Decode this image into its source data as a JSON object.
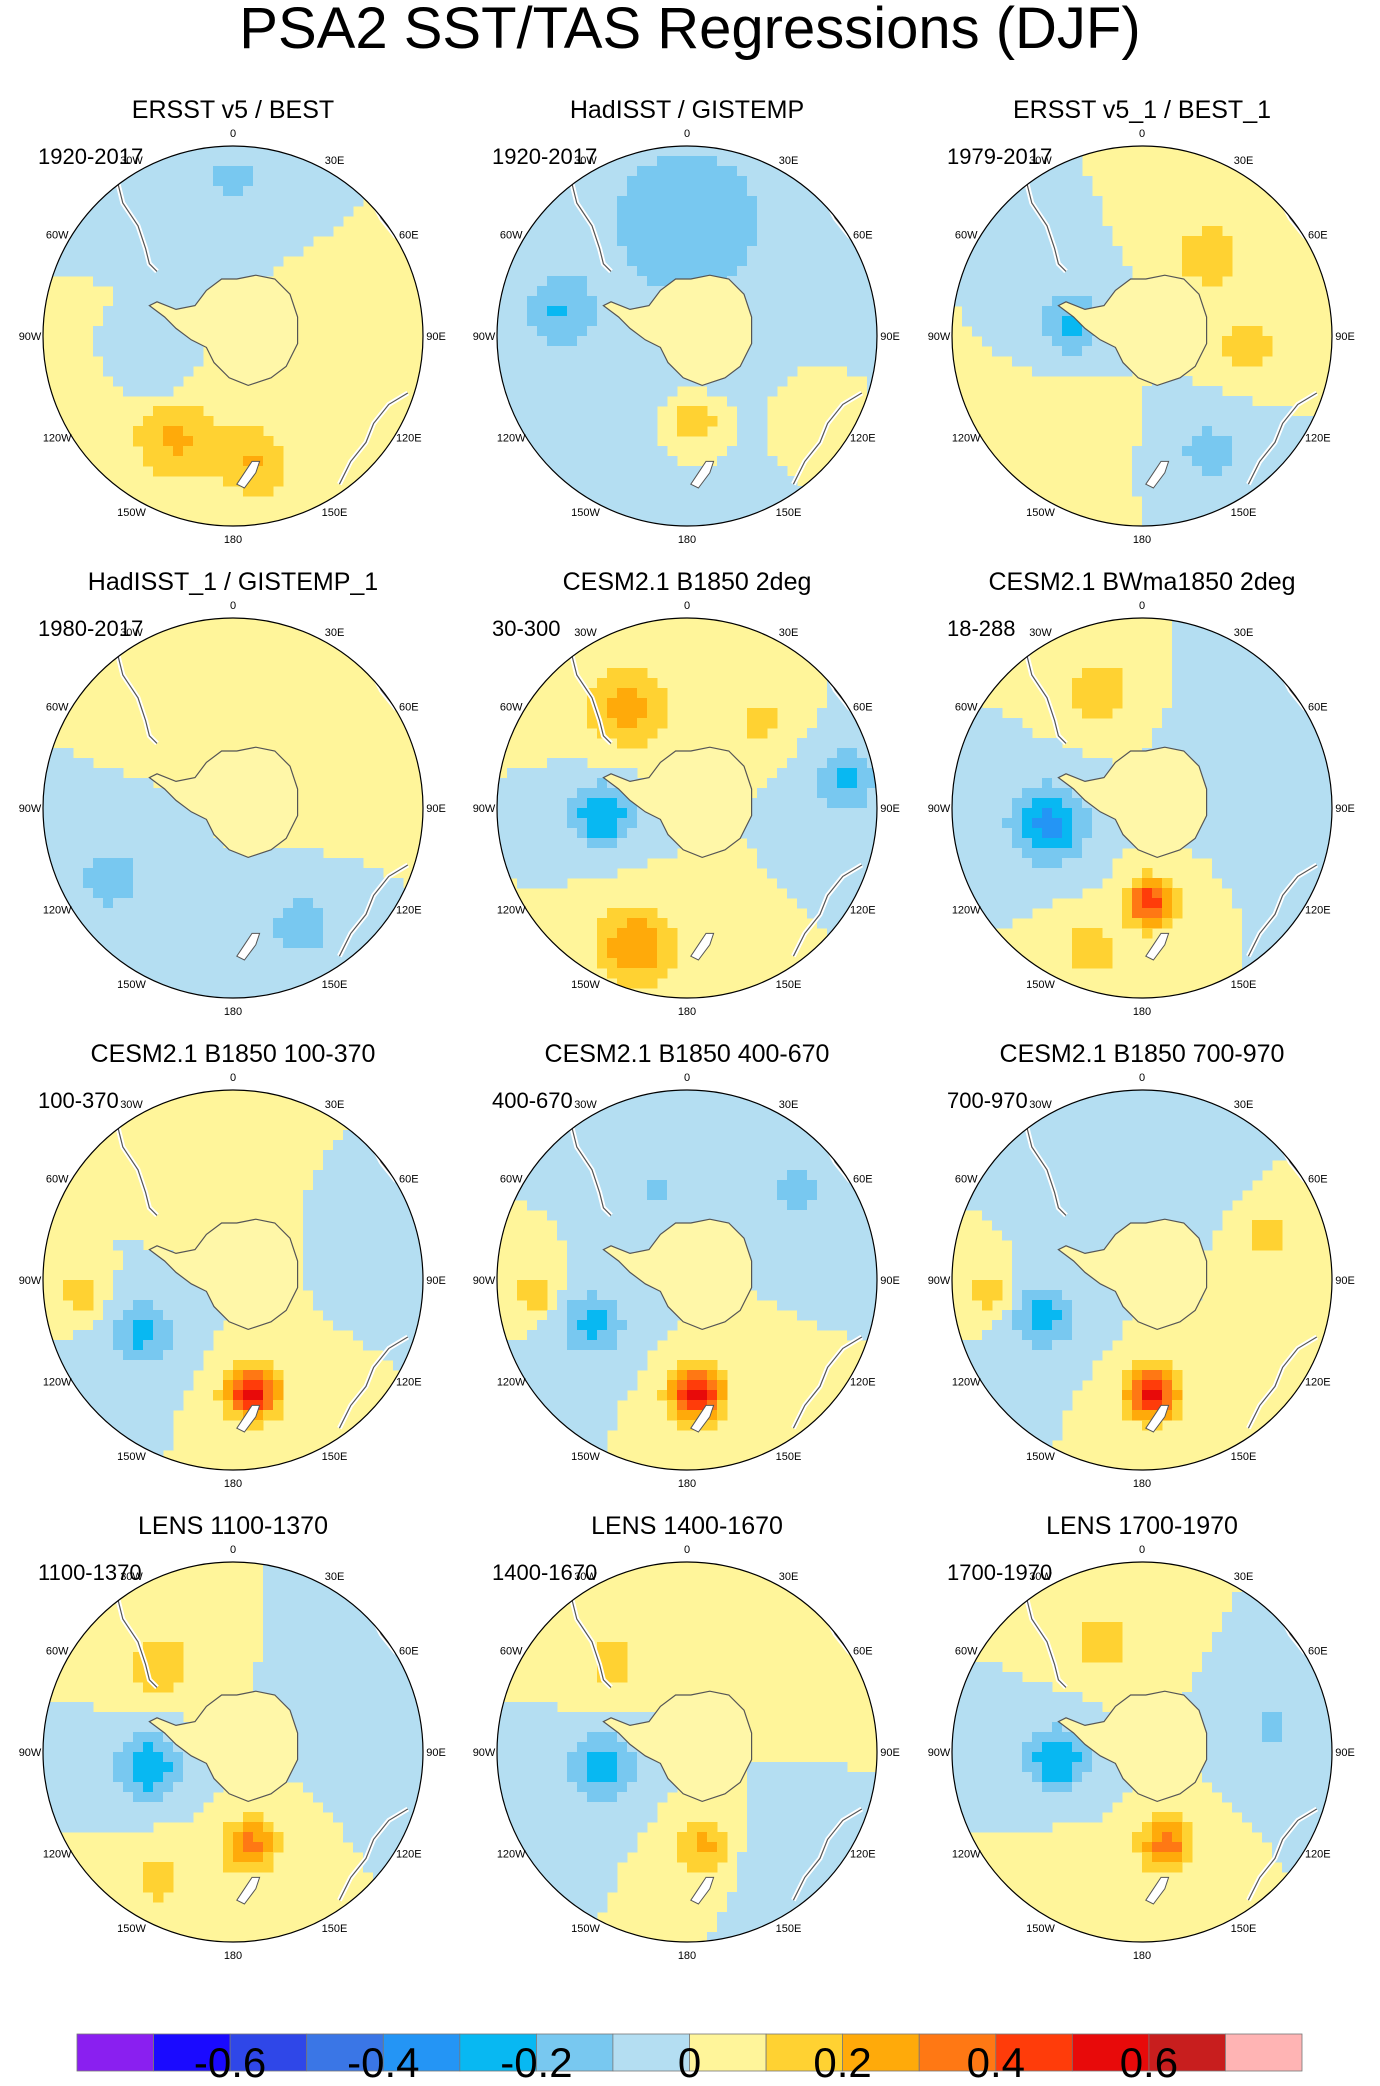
{
  "figure": {
    "title": "PSA2 SST/TAS Regressions (DJF)",
    "longitude_labels": [
      "0",
      "30E",
      "60E",
      "90E",
      "120E",
      "150E",
      "180",
      "150W",
      "120W",
      "90W",
      "60W",
      "30W"
    ]
  },
  "panels": [
    {
      "title": "ERSST v5 / BEST",
      "years": "1920-2017",
      "blobs": [
        {
          "lon": -150,
          "r": 0.62,
          "v": 0.22,
          "s": 0.16
        },
        {
          "lon": 170,
          "r": 0.68,
          "v": 0.2,
          "s": 0.14
        },
        {
          "lon": -120,
          "r": 0.45,
          "v": -0.1,
          "s": 0.1
        },
        {
          "lon": 0,
          "r": 0.82,
          "v": -0.12,
          "s": 0.16
        },
        {
          "lon": 100,
          "r": 0.6,
          "v": 0.05,
          "s": 0.2
        }
      ]
    },
    {
      "title": "HadISST / GISTEMP",
      "years": "1920-2017",
      "blobs": [
        {
          "lon": 0,
          "r": 0.6,
          "v": -0.12,
          "s": 0.6
        },
        {
          "lon": 175,
          "r": 0.45,
          "v": 0.2,
          "s": 0.1
        },
        {
          "lon": -80,
          "r": 0.7,
          "v": -0.16,
          "s": 0.12
        },
        {
          "lon": 120,
          "r": 0.75,
          "v": 0.06,
          "s": 0.18
        }
      ]
    },
    {
      "title": "ERSST v5_1 / BEST_1",
      "years": "1979-2017",
      "blobs": [
        {
          "lon": -80,
          "r": 0.38,
          "v": -0.22,
          "s": 0.12
        },
        {
          "lon": 40,
          "r": 0.55,
          "v": 0.2,
          "s": 0.12
        },
        {
          "lon": 95,
          "r": 0.55,
          "v": 0.16,
          "s": 0.12
        },
        {
          "lon": -140,
          "r": 0.7,
          "v": 0.06,
          "s": 0.18
        },
        {
          "lon": 150,
          "r": 0.7,
          "v": -0.14,
          "s": 0.14
        }
      ]
    },
    {
      "title": "HadISST_1 / GISTEMP_1",
      "years": "1980-2017",
      "blobs": [
        {
          "lon": -120,
          "r": 0.75,
          "v": -0.14,
          "s": 0.16
        },
        {
          "lon": 150,
          "r": 0.72,
          "v": -0.16,
          "s": 0.14
        },
        {
          "lon": -30,
          "r": 0.7,
          "v": 0.1,
          "s": 0.14
        },
        {
          "lon": 60,
          "r": 0.55,
          "v": 0.06,
          "s": 0.2
        }
      ]
    },
    {
      "title": "CESM2.1 B1850 2deg",
      "years": "30-300",
      "blobs": [
        {
          "lon": -30,
          "r": 0.62,
          "v": 0.24,
          "s": 0.16
        },
        {
          "lon": -95,
          "r": 0.45,
          "v": -0.3,
          "s": 0.12
        },
        {
          "lon": -160,
          "r": 0.78,
          "v": 0.3,
          "s": 0.15
        },
        {
          "lon": 80,
          "r": 0.85,
          "v": -0.22,
          "s": 0.12
        },
        {
          "lon": 40,
          "r": 0.6,
          "v": 0.14,
          "s": 0.1
        }
      ]
    },
    {
      "title": "CESM2.1 BWma1850 2deg",
      "years": "18-288",
      "blobs": [
        {
          "lon": -100,
          "r": 0.5,
          "v": -0.34,
          "s": 0.14
        },
        {
          "lon": 175,
          "r": 0.5,
          "v": 0.48,
          "s": 0.09
        },
        {
          "lon": -20,
          "r": 0.65,
          "v": 0.2,
          "s": 0.12
        },
        {
          "lon": -160,
          "r": 0.8,
          "v": 0.16,
          "s": 0.12
        },
        {
          "lon": 60,
          "r": 0.65,
          "v": -0.08,
          "s": 0.18
        }
      ]
    },
    {
      "title": "CESM2.1 B1850 100-370",
      "years": "100-370",
      "blobs": [
        {
          "lon": 170,
          "r": 0.6,
          "v": 0.55,
          "s": 0.1
        },
        {
          "lon": -120,
          "r": 0.55,
          "v": -0.24,
          "s": 0.12
        },
        {
          "lon": -95,
          "r": 0.8,
          "v": 0.18,
          "s": 0.08
        },
        {
          "lon": 60,
          "r": 0.78,
          "v": -0.1,
          "s": 0.12
        },
        {
          "lon": 0,
          "r": 0.7,
          "v": 0.06,
          "s": 0.2
        }
      ]
    },
    {
      "title": "CESM2.1 B1850 400-670",
      "years": "400-670",
      "blobs": [
        {
          "lon": 175,
          "r": 0.6,
          "v": 0.55,
          "s": 0.1
        },
        {
          "lon": -115,
          "r": 0.55,
          "v": -0.24,
          "s": 0.12
        },
        {
          "lon": -95,
          "r": 0.8,
          "v": 0.18,
          "s": 0.08
        },
        {
          "lon": 50,
          "r": 0.75,
          "v": -0.16,
          "s": 0.1
        },
        {
          "lon": -20,
          "r": 0.5,
          "v": -0.12,
          "s": 0.1
        }
      ]
    },
    {
      "title": "CESM2.1 B1850 700-970",
      "years": "700-970",
      "blobs": [
        {
          "lon": 175,
          "r": 0.6,
          "v": 0.52,
          "s": 0.1
        },
        {
          "lon": -110,
          "r": 0.55,
          "v": -0.24,
          "s": 0.12
        },
        {
          "lon": -95,
          "r": 0.8,
          "v": 0.18,
          "s": 0.08
        },
        {
          "lon": 70,
          "r": 0.7,
          "v": 0.14,
          "s": 0.1
        },
        {
          "lon": 20,
          "r": 0.6,
          "v": -0.08,
          "s": 0.14
        }
      ]
    },
    {
      "title": "LENS 1100-1370",
      "years": "1100-1370",
      "blobs": [
        {
          "lon": -100,
          "r": 0.45,
          "v": -0.3,
          "s": 0.12
        },
        {
          "lon": 170,
          "r": 0.5,
          "v": 0.36,
          "s": 0.1
        },
        {
          "lon": -40,
          "r": 0.6,
          "v": 0.2,
          "s": 0.12
        },
        {
          "lon": -150,
          "r": 0.78,
          "v": 0.14,
          "s": 0.12
        },
        {
          "lon": 70,
          "r": 0.7,
          "v": -0.1,
          "s": 0.14
        }
      ]
    },
    {
      "title": "LENS 1400-1670",
      "years": "1400-1670",
      "blobs": [
        {
          "lon": -100,
          "r": 0.45,
          "v": -0.28,
          "s": 0.12
        },
        {
          "lon": 170,
          "r": 0.5,
          "v": 0.24,
          "s": 0.1
        },
        {
          "lon": -40,
          "r": 0.62,
          "v": 0.14,
          "s": 0.12
        },
        {
          "lon": 50,
          "r": 0.7,
          "v": 0.1,
          "s": 0.12
        },
        {
          "lon": 140,
          "r": 0.75,
          "v": -0.1,
          "s": 0.12
        }
      ]
    },
    {
      "title": "LENS 1700-1970",
      "years": "1700-1970",
      "blobs": [
        {
          "lon": -95,
          "r": 0.45,
          "v": -0.3,
          "s": 0.12
        },
        {
          "lon": 165,
          "r": 0.5,
          "v": 0.36,
          "s": 0.1
        },
        {
          "lon": -20,
          "r": 0.62,
          "v": 0.16,
          "s": 0.12
        },
        {
          "lon": 80,
          "r": 0.7,
          "v": -0.12,
          "s": 0.12
        },
        {
          "lon": -150,
          "r": 0.8,
          "v": 0.1,
          "s": 0.12
        }
      ]
    }
  ],
  "colorbar": {
    "levels": [
      -0.7,
      -0.6,
      -0.5,
      -0.4,
      -0.3,
      -0.2,
      -0.1,
      0,
      0.1,
      0.2,
      0.3,
      0.4,
      0.5,
      0.6,
      0.7
    ],
    "colors": [
      "#8a1ff0",
      "#1a0aff",
      "#2f47e8",
      "#3a76e6",
      "#2495f5",
      "#08b8f2",
      "#78c8f0",
      "#b4def2",
      "#fff59a",
      "#ffd232",
      "#ffaa0a",
      "#ff7814",
      "#ff3c0a",
      "#e80a0a",
      "#c81e1e",
      "#ffb4b4"
    ],
    "labels": [
      "-0.6",
      "-0.4",
      "-0.2",
      "0",
      "0.2",
      "0.4",
      "0.6"
    ]
  }
}
